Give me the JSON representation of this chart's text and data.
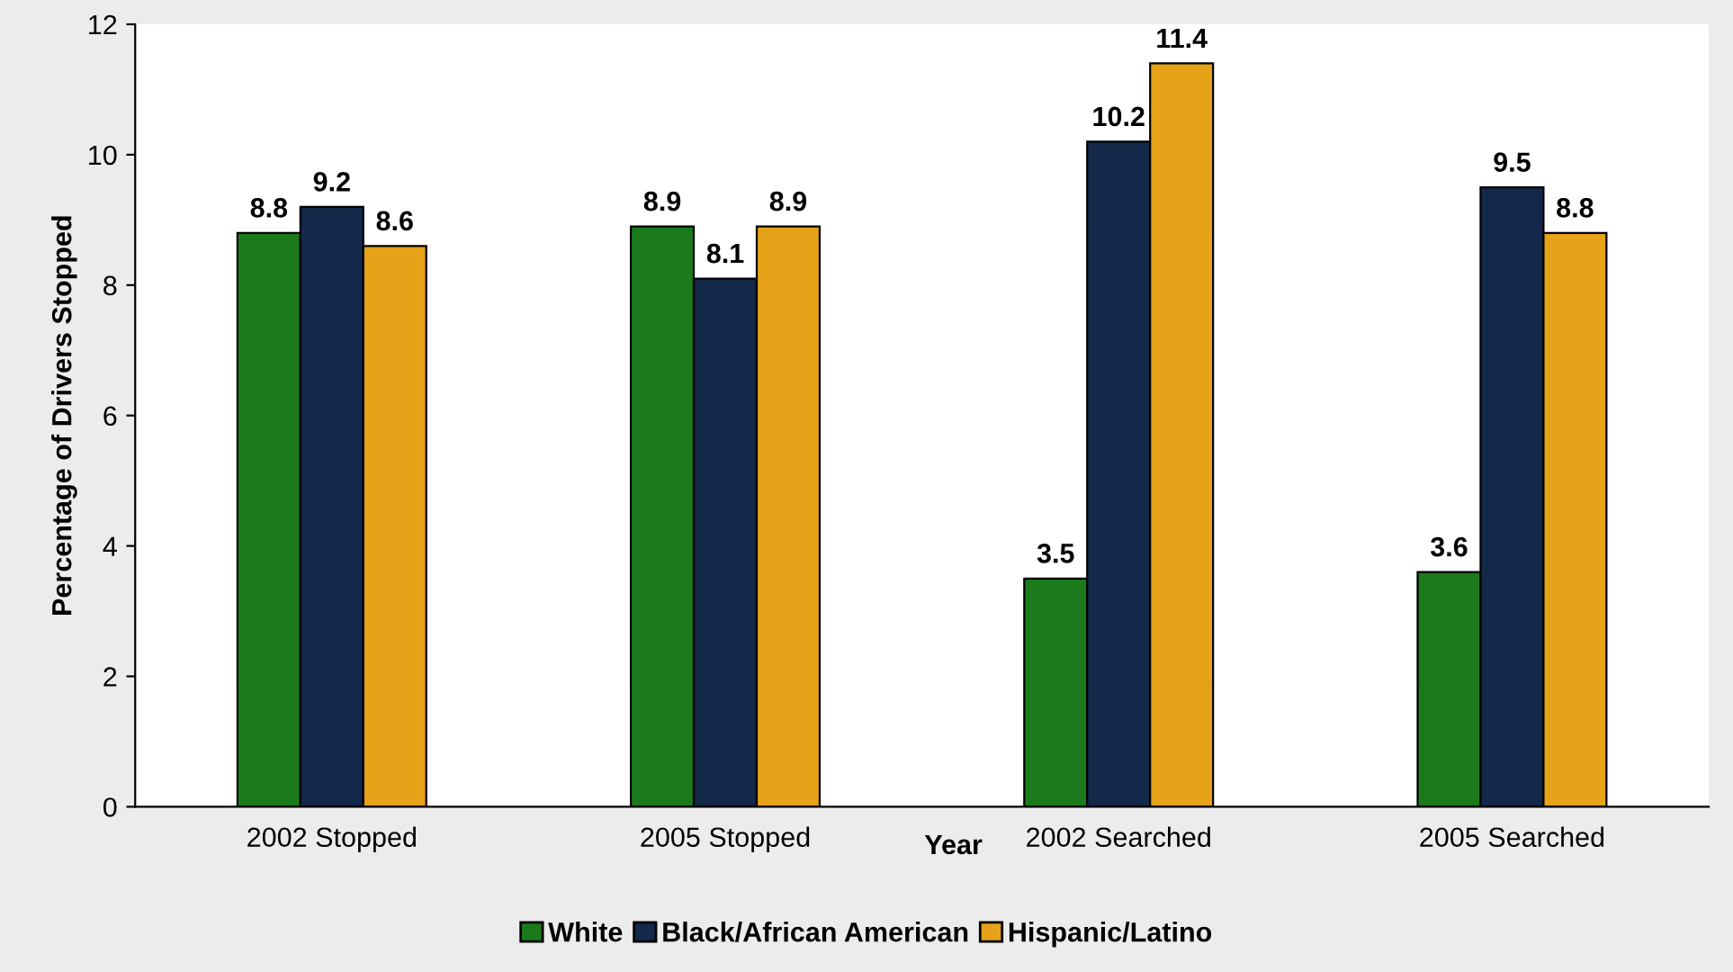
{
  "chart_data": {
    "type": "bar",
    "xlabel": "Year",
    "ylabel": "Percentage of Drivers Stopped",
    "categories": [
      "2002 Stopped",
      "2005 Stopped",
      "2002 Searched",
      "2005 Searched"
    ],
    "series": [
      {
        "name": "White",
        "color": "#1b7a1b",
        "values": [
          8.8,
          8.9,
          3.5,
          3.6
        ]
      },
      {
        "name": "Black/African American",
        "color": "#14284a",
        "values": [
          9.2,
          8.1,
          10.2,
          9.5
        ]
      },
      {
        "name": "Hispanic/Latino",
        "color": "#e6a219",
        "values": [
          8.6,
          8.9,
          11.4,
          8.8
        ]
      }
    ],
    "ylim": [
      0,
      12
    ],
    "yticks": [
      0,
      2,
      4,
      6,
      8,
      10,
      12
    ],
    "grid": false,
    "legend": "bottom",
    "data_labels": true
  }
}
